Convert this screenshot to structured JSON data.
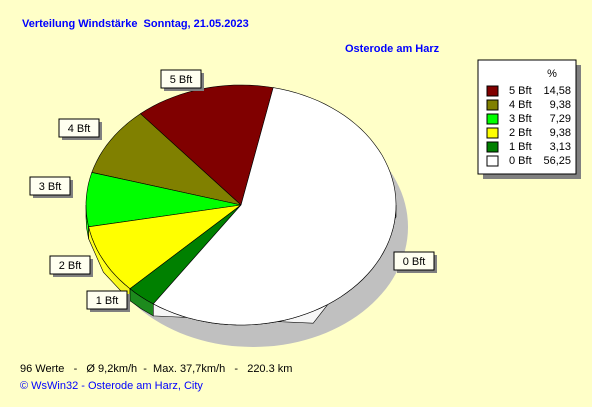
{
  "chart_data": {
    "type": "pie",
    "title": "Verteilung Windstärke  Sonntag, 21.05.2023",
    "subtitle": "Osterode am Harz",
    "legend_header": "%",
    "categories": [
      "5 Bft",
      "4 Bft",
      "3 Bft",
      "2 Bft",
      "1 Bft",
      "0 Bft"
    ],
    "values": [
      14.58,
      9.38,
      7.29,
      9.38,
      3.13,
      56.25
    ],
    "value_labels": [
      "14,58",
      "9,38",
      "7,29",
      "9,38",
      "3,13",
      "56,25"
    ],
    "colors": [
      "#800000",
      "#808000",
      "#00ff00",
      "#ffff00",
      "#008000",
      "#ffffff"
    ],
    "legend": "top-right",
    "footer": "96 Werte   -   Ø 9,2km/h  -  Max. 37,7km/h   -   220.3 km",
    "credit": "© WsWin32  -  Osterode am Harz, City"
  }
}
